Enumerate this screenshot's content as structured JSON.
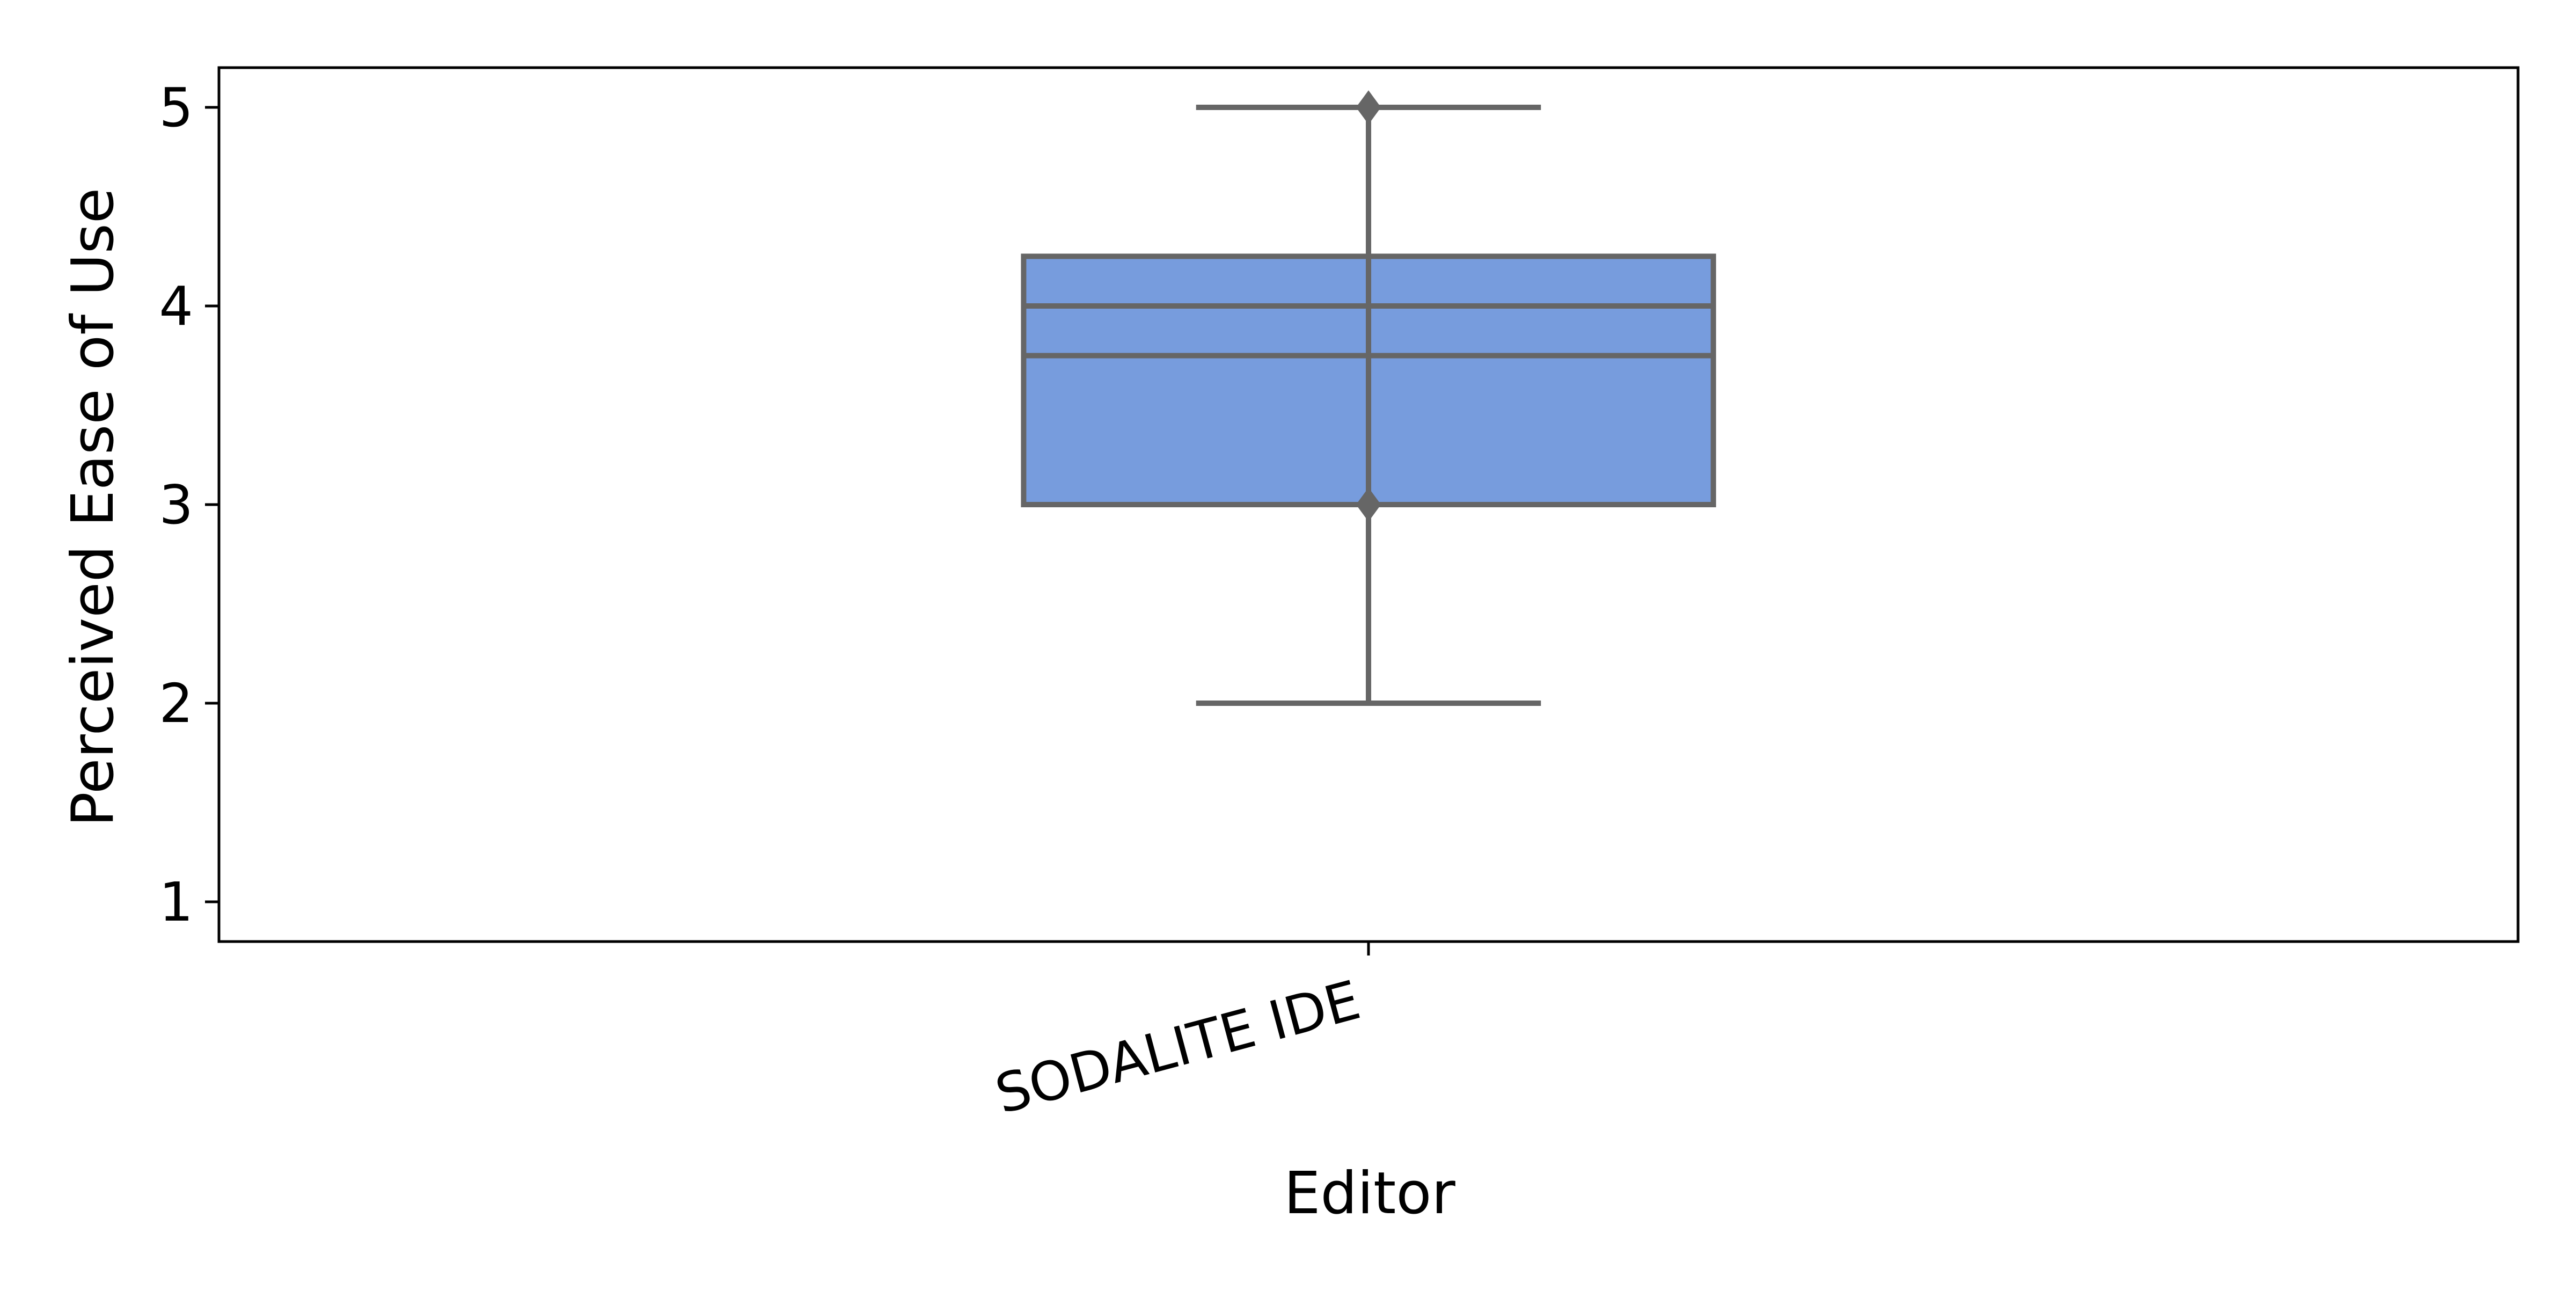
{
  "chart_data": {
    "type": "box",
    "title": "",
    "xlabel": "Editor",
    "ylabel": "Perceived Ease of Use",
    "ylim": [
      0.8,
      5.2
    ],
    "y_ticks": [
      "1",
      "2",
      "3",
      "4",
      "5"
    ],
    "grid": false,
    "categories": [
      "SODALITE IDE"
    ],
    "boxes": [
      {
        "category": "SODALITE IDE",
        "whisker_low": 2,
        "q1": 3,
        "median": 4,
        "mean": 3.75,
        "q3": 4.25,
        "whisker_high": 5,
        "outliers": [
          3,
          5
        ]
      }
    ],
    "colors": {
      "box_fill": "#779cdd",
      "lines": "#666666",
      "axes": "#000000"
    }
  }
}
